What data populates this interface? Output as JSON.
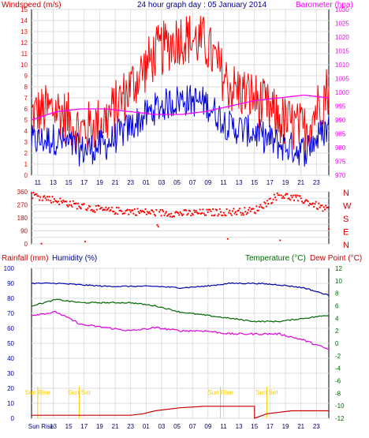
{
  "colors": {
    "wind_speed": "#ff0000",
    "wind_gust": "#cc0000",
    "wind_avg": "#0000dd",
    "barometer": "#ff00ff",
    "direction": "#ff0000",
    "rain": "#cc0000",
    "humidity": "#0000aa",
    "temperature": "#006600",
    "dew_point": "#dd00dd",
    "sun_marker": "#ffcc00",
    "grid": "#dddddd"
  },
  "chart_data": [
    {
      "type": "line",
      "title": "24 hour graph day : 05 January 2014",
      "ylabel": "Windspeed (m/s)",
      "y2label": "Barometer (hpa)",
      "x_ticks": [
        "11",
        "13",
        "15",
        "17",
        "19",
        "21",
        "23",
        "01",
        "03",
        "05",
        "07",
        "09",
        "11",
        "13",
        "15",
        "17",
        "19",
        "21",
        "23"
      ],
      "ylim": [
        0,
        15
      ],
      "y_ticks": [
        0,
        1,
        2,
        3,
        4,
        5,
        6,
        7,
        8,
        9,
        10,
        11,
        12,
        13,
        14,
        15
      ],
      "y2lim": [
        970,
        1030
      ],
      "y2_ticks": [
        970,
        975,
        980,
        985,
        990,
        995,
        1000,
        1005,
        1010,
        1015,
        1020,
        1025,
        1030
      ],
      "grid": true,
      "series": [
        {
          "name": "Windspeed (m/s)",
          "axis": "left",
          "x": [
            0,
            4,
            8,
            12,
            16,
            20,
            24,
            28,
            32,
            36,
            40,
            44,
            48
          ],
          "values": [
            5.5,
            6,
            4,
            5,
            8,
            11,
            12.5,
            12,
            8,
            7,
            5,
            4,
            8
          ]
        },
        {
          "name": "Barometer (hpa)",
          "axis": "right",
          "x": [
            0,
            4,
            8,
            12,
            16,
            20,
            24,
            28,
            32,
            36,
            40,
            44,
            48
          ],
          "values": [
            990,
            993,
            994,
            994,
            993,
            992,
            992,
            993,
            995,
            997,
            998,
            999,
            998
          ]
        }
      ]
    },
    {
      "type": "scatter",
      "ylim": [
        0,
        360
      ],
      "y_ticks": [
        0,
        45,
        90,
        135,
        180,
        225,
        270,
        315,
        360
      ],
      "y_tick_labels": [
        "0",
        "",
        "90",
        "",
        "180",
        "",
        "270",
        "",
        "360"
      ],
      "right_labels": [
        "N",
        "W",
        "S",
        "E",
        "N"
      ],
      "series": [
        {
          "name": "Wind Direction",
          "x": [
            0,
            4,
            8,
            12,
            16,
            20,
            24,
            28,
            32,
            36,
            40,
            44,
            48
          ],
          "values": [
            340,
            300,
            260,
            230,
            225,
            215,
            210,
            215,
            220,
            230,
            340,
            300,
            230
          ]
        }
      ]
    },
    {
      "type": "line",
      "ylabel": "Rainfall (mm)",
      "ylabel2": "Humidity (%)",
      "y2label": "Temperature (°C)",
      "y2label2": "Dew Point (°C)",
      "ylim": [
        0,
        100
      ],
      "y_ticks": [
        0,
        10,
        20,
        30,
        40,
        50,
        60,
        70,
        80,
        90,
        100
      ],
      "y2lim": [
        -12,
        12
      ],
      "y2_ticks": [
        -12,
        -10,
        -8,
        -6,
        -4,
        -2,
        0,
        2,
        4,
        6,
        8,
        10,
        12
      ],
      "x_ticks": [
        "Sun Rise",
        "13",
        "15",
        "17",
        "19",
        "21",
        "23",
        "01",
        "03",
        "05",
        "07",
        "09",
        "11",
        "13",
        "15",
        "17",
        "19",
        "21",
        "23"
      ],
      "annotations": [
        "Sun Rise",
        "Sun Set",
        "Sun Rise",
        "Sun Set"
      ],
      "grid": true,
      "series": [
        {
          "name": "Rainfall (mm)",
          "axis": "left",
          "x": [
            0,
            14,
            16,
            18,
            20,
            24,
            28,
            34,
            36,
            38,
            42,
            46,
            48
          ],
          "values": [
            2,
            2,
            2,
            3,
            5,
            7,
            8,
            8,
            0,
            3,
            5,
            5,
            5
          ]
        },
        {
          "name": "Humidity (%)",
          "axis": "left",
          "x": [
            0,
            4,
            8,
            12,
            16,
            20,
            24,
            28,
            32,
            36,
            40,
            44,
            48
          ],
          "values": [
            90,
            90,
            89,
            88,
            88,
            88,
            87,
            88,
            90,
            90,
            89,
            87,
            82
          ]
        },
        {
          "name": "Temperature (°C)",
          "axis": "right",
          "x": [
            0,
            4,
            8,
            12,
            16,
            20,
            24,
            28,
            32,
            36,
            40,
            44,
            48
          ],
          "values": [
            6,
            7,
            6.5,
            6.5,
            6.5,
            6,
            5,
            4.5,
            4,
            3.5,
            3.5,
            4,
            4.5
          ]
        },
        {
          "name": "Dew Point (°C)",
          "axis": "right",
          "x": [
            0,
            4,
            8,
            12,
            16,
            20,
            24,
            28,
            32,
            36,
            40,
            44,
            48
          ],
          "values": [
            4.5,
            5,
            3,
            2.5,
            2,
            2.5,
            2,
            2,
            1.5,
            1.5,
            1.5,
            0.5,
            -1
          ]
        }
      ]
    }
  ]
}
